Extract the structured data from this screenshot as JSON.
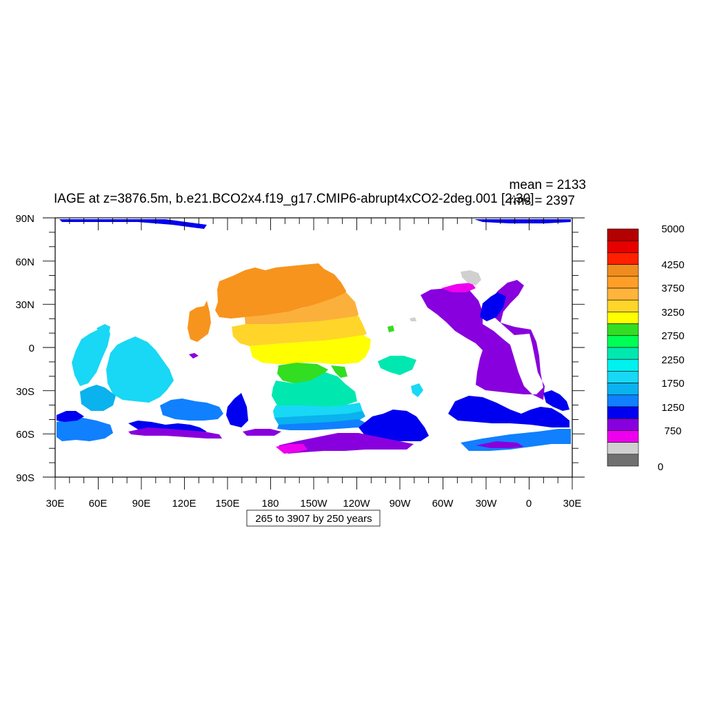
{
  "title": "IAGE at z=3876.5m, b.e21.BCO2x4.f19_g17.CMIP6-abrupt4xCO2-2deg.001 [2:30]",
  "stats": {
    "mean": "mean = 2133",
    "rms": "rms = 2397"
  },
  "contour_info": "265 to 3907 by 250 years",
  "axes": {
    "lat_labels": [
      "90N",
      "60N",
      "30N",
      "0",
      "30S",
      "60S",
      "90S"
    ],
    "lon_labels": [
      "30E",
      "60E",
      "90E",
      "120E",
      "150E",
      "180",
      "150W",
      "120W",
      "90W",
      "60W",
      "30W",
      "0",
      "30E"
    ]
  },
  "colorbar": {
    "labels": [
      "5000",
      "4250",
      "3750",
      "3250",
      "2750",
      "2250",
      "1750",
      "1250",
      "750",
      "0"
    ],
    "colors": [
      "#b40000",
      "#e60000",
      "#ff2000",
      "#f08c1e",
      "#ff9f28",
      "#ffb43c",
      "#ffd52a",
      "#ffff00",
      "#33dd22",
      "#00ff55",
      "#00e8b0",
      "#00f2ee",
      "#18d8f5",
      "#0ab2ee",
      "#1080ff",
      "#0000f0",
      "#8800dd",
      "#ee00ee",
      "#d0d0d0",
      "#707070"
    ]
  },
  "map_colors": {
    "orange": "#f7941d",
    "lightorange": "#fbb03b",
    "gold": "#ffd52a",
    "yellow": "#ffff00",
    "green": "#33dd22",
    "turquoise": "#00e8b0",
    "cyan": "#18d8f5",
    "azure": "#0ab2ee",
    "blue": "#1080ff",
    "darkblue": "#0000f0",
    "purple": "#8800dd",
    "magenta": "#ee00ee",
    "gray": "#d0d0d0"
  }
}
